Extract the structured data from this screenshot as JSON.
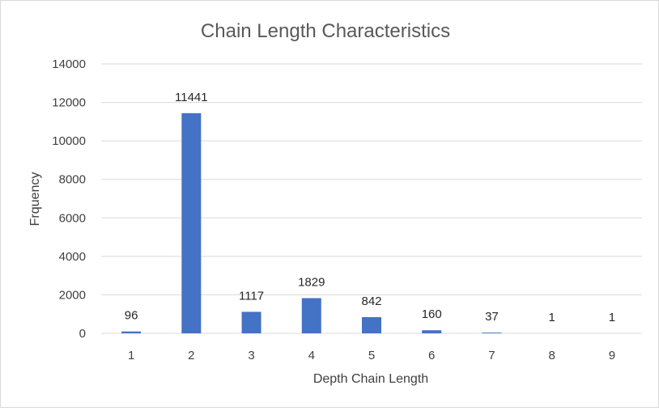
{
  "chart_data": {
    "type": "bar",
    "title": "Chain Length Characteristics",
    "xlabel": "Depth Chain Length",
    "ylabel": "Frquency",
    "categories": [
      "1",
      "2",
      "3",
      "4",
      "5",
      "6",
      "7",
      "8",
      "9"
    ],
    "values": [
      96,
      11441,
      1117,
      1829,
      842,
      160,
      37,
      1,
      1
    ],
    "data_labels": [
      "96",
      "11441",
      "1117",
      "1829",
      "842",
      "160",
      "37",
      "1",
      "1"
    ],
    "ylim": [
      0,
      14000
    ],
    "yticks": [
      "0",
      "2000",
      "4000",
      "6000",
      "8000",
      "10000",
      "12000",
      "14000"
    ],
    "grid": true,
    "legend": "none",
    "bar_color": "#4472C4",
    "grid_color": "#d9d9d9"
  }
}
